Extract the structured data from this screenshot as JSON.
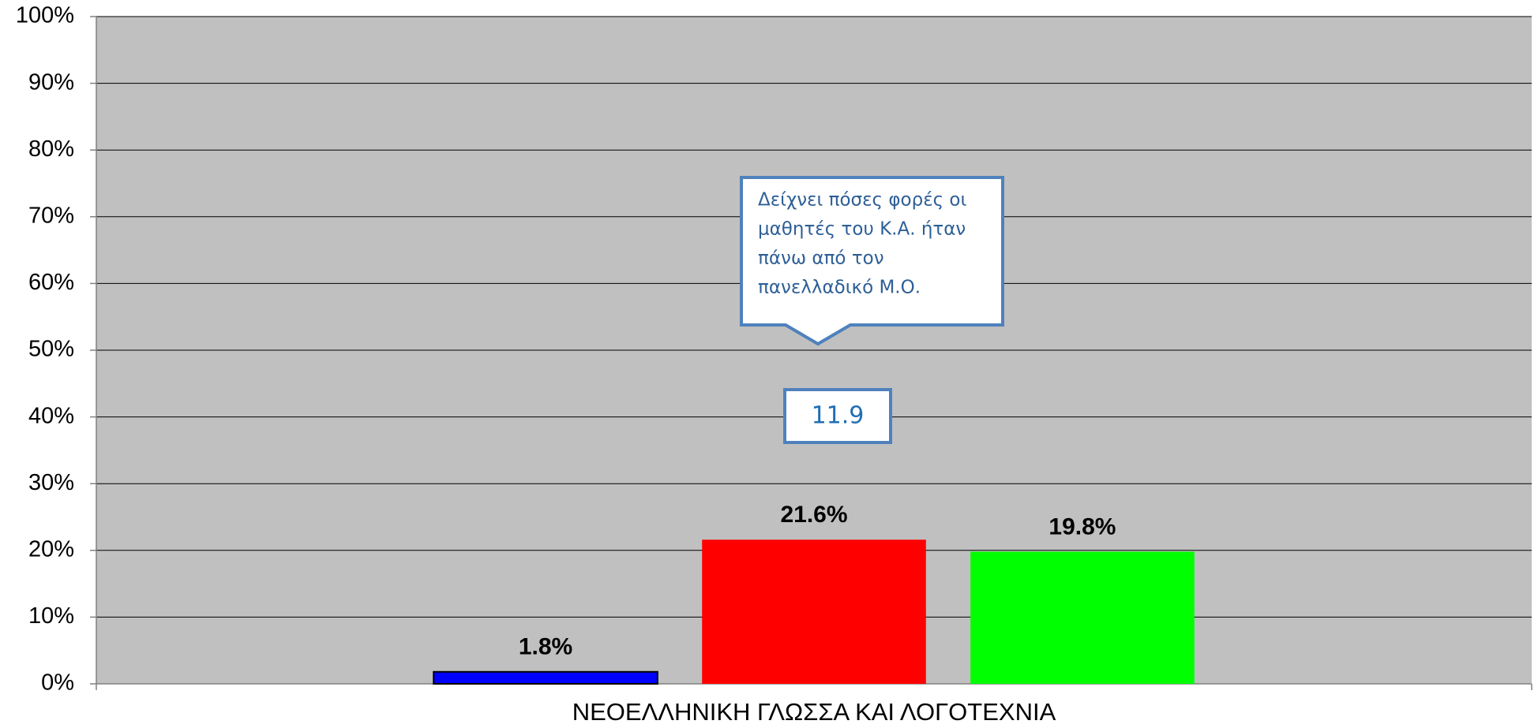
{
  "chart_data": {
    "type": "bar",
    "x_label": "ΝΕΟΕΛΛΗΝΙΚΗ ΓΛΩΣΣΑ ΚΑΙ ΛΟΓΟΤΕΧΝΙΑ",
    "categories": [
      null
    ],
    "series": [
      {
        "color": "#0000ff",
        "values": [
          1.8
        ],
        "value_labels": [
          "1.8%"
        ]
      },
      {
        "color": "#ff0000",
        "values": [
          21.6
        ],
        "value_labels": [
          "21.6%"
        ]
      },
      {
        "color": "#00ff00",
        "values": [
          19.8
        ],
        "value_labels": [
          "19.8%"
        ]
      }
    ],
    "ylim": [
      0,
      100
    ],
    "yticks": [
      {
        "value": 0,
        "label": "0%"
      },
      {
        "value": 10,
        "label": "10%"
      },
      {
        "value": 20,
        "label": "20%"
      },
      {
        "value": 30,
        "label": "30%"
      },
      {
        "value": 40,
        "label": "40%"
      },
      {
        "value": 50,
        "label": "50%"
      },
      {
        "value": 60,
        "label": "60%"
      },
      {
        "value": 70,
        "label": "70%"
      },
      {
        "value": 80,
        "label": "80%"
      },
      {
        "value": 90,
        "label": "90%"
      },
      {
        "value": 100,
        "label": "100%"
      }
    ],
    "grid": true,
    "plot_background": "#c0c0c0",
    "annotations": [
      {
        "lines": [
          "Δείχνει πόσες φορές οι",
          "μαθητές του Κ.Α. ήταν",
          "πάνω από τον",
          "πανελλαδικό Μ.Ο."
        ]
      },
      {
        "text": 11.9
      }
    ]
  }
}
